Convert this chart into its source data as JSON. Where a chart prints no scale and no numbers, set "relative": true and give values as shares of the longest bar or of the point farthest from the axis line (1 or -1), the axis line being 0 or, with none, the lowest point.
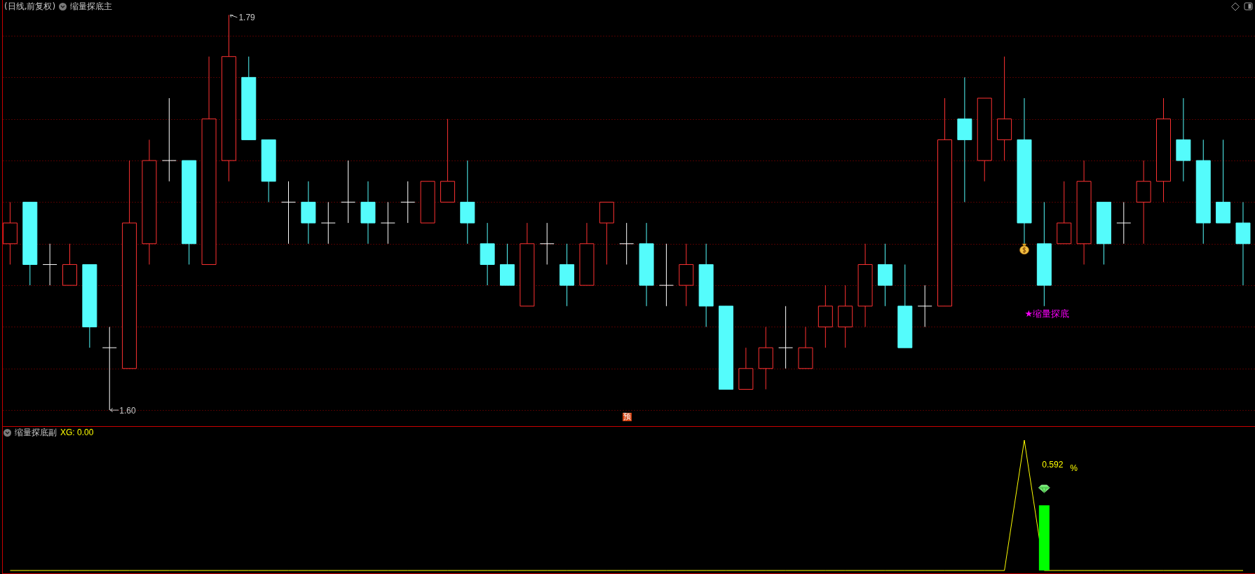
{
  "chart_data": [
    {
      "type": "candlestick",
      "title": "(日线,前复权)",
      "subtitle": "缩量探底主",
      "categories": [
        null,
        null,
        null,
        null,
        null,
        null,
        null,
        null,
        null,
        null,
        null,
        null,
        null,
        null,
        null,
        null,
        null,
        null,
        null,
        null,
        null,
        null,
        null,
        null,
        null,
        null,
        null,
        null,
        null,
        null,
        null,
        null,
        null,
        null,
        null,
        null,
        null,
        null,
        null,
        null,
        null,
        null,
        null,
        null,
        null,
        null,
        null,
        null,
        null,
        null,
        null,
        null,
        null,
        null,
        null,
        null,
        null,
        null,
        null,
        null,
        null,
        null,
        null
      ],
      "ohlc": [
        [
          1.68,
          1.7,
          1.67,
          1.69
        ],
        [
          1.7,
          1.7,
          1.66,
          1.67
        ],
        [
          1.67,
          1.68,
          1.66,
          1.67
        ],
        [
          1.66,
          1.68,
          1.66,
          1.67
        ],
        [
          1.67,
          1.67,
          1.63,
          1.64
        ],
        [
          1.63,
          1.64,
          1.6,
          1.63
        ],
        [
          1.62,
          1.72,
          1.62,
          1.69
        ],
        [
          1.68,
          1.73,
          1.67,
          1.72
        ],
        [
          1.72,
          1.75,
          1.71,
          1.72
        ],
        [
          1.72,
          1.72,
          1.67,
          1.68
        ],
        [
          1.67,
          1.77,
          1.67,
          1.74
        ],
        [
          1.72,
          1.79,
          1.71,
          1.77
        ],
        [
          1.76,
          1.77,
          1.73,
          1.73
        ],
        [
          1.73,
          1.73,
          1.7,
          1.71
        ],
        [
          1.7,
          1.71,
          1.68,
          1.7
        ],
        [
          1.7,
          1.71,
          1.68,
          1.69
        ],
        [
          1.69,
          1.7,
          1.68,
          1.69
        ],
        [
          1.7,
          1.72,
          1.69,
          1.7
        ],
        [
          1.7,
          1.71,
          1.68,
          1.69
        ],
        [
          1.69,
          1.7,
          1.68,
          1.69
        ],
        [
          1.7,
          1.71,
          1.69,
          1.7
        ],
        [
          1.69,
          1.71,
          1.69,
          1.71
        ],
        [
          1.7,
          1.74,
          1.7,
          1.71
        ],
        [
          1.7,
          1.72,
          1.68,
          1.69
        ],
        [
          1.68,
          1.69,
          1.66,
          1.67
        ],
        [
          1.67,
          1.68,
          1.66,
          1.66
        ],
        [
          1.65,
          1.69,
          1.65,
          1.68
        ],
        [
          1.68,
          1.69,
          1.67,
          1.68
        ],
        [
          1.67,
          1.68,
          1.65,
          1.66
        ],
        [
          1.66,
          1.69,
          1.66,
          1.68
        ],
        [
          1.69,
          1.7,
          1.67,
          1.7
        ],
        [
          1.68,
          1.69,
          1.67,
          1.68
        ],
        [
          1.68,
          1.69,
          1.65,
          1.66
        ],
        [
          1.66,
          1.68,
          1.65,
          1.66
        ],
        [
          1.66,
          1.68,
          1.65,
          1.67
        ],
        [
          1.67,
          1.68,
          1.64,
          1.65
        ],
        [
          1.65,
          1.65,
          1.61,
          1.61
        ],
        [
          1.61,
          1.63,
          1.61,
          1.62
        ],
        [
          1.62,
          1.64,
          1.61,
          1.63
        ],
        [
          1.63,
          1.65,
          1.62,
          1.63
        ],
        [
          1.62,
          1.64,
          1.62,
          1.63
        ],
        [
          1.64,
          1.66,
          1.63,
          1.65
        ],
        [
          1.64,
          1.66,
          1.63,
          1.65
        ],
        [
          1.65,
          1.68,
          1.64,
          1.67
        ],
        [
          1.67,
          1.68,
          1.65,
          1.66
        ],
        [
          1.65,
          1.67,
          1.63,
          1.63
        ],
        [
          1.65,
          1.66,
          1.64,
          1.65
        ],
        [
          1.65,
          1.75,
          1.65,
          1.73
        ],
        [
          1.74,
          1.76,
          1.7,
          1.73
        ],
        [
          1.72,
          1.75,
          1.71,
          1.75
        ],
        [
          1.73,
          1.77,
          1.72,
          1.74
        ],
        [
          1.73,
          1.75,
          1.68,
          1.69
        ],
        [
          1.68,
          1.7,
          1.65,
          1.66
        ],
        [
          1.68,
          1.71,
          1.68,
          1.69
        ],
        [
          1.68,
          1.72,
          1.67,
          1.71
        ],
        [
          1.7,
          1.7,
          1.67,
          1.68
        ],
        [
          1.69,
          1.7,
          1.68,
          1.69
        ],
        [
          1.7,
          1.72,
          1.68,
          1.71
        ],
        [
          1.71,
          1.75,
          1.7,
          1.74
        ],
        [
          1.73,
          1.75,
          1.71,
          1.72
        ],
        [
          1.72,
          1.73,
          1.68,
          1.69
        ],
        [
          1.7,
          1.73,
          1.69,
          1.69
        ],
        [
          1.69,
          1.7,
          1.66,
          1.68
        ]
      ],
      "colors": [
        "#ff3232",
        "#54fcfc",
        "#ffffff",
        "#ff3232",
        "#54fcfc",
        "#ffffff",
        "#ff3232",
        "#ff3232",
        "#ffffff",
        "#54fcfc",
        "#ff3232",
        "#ff3232",
        "#54fcfc",
        "#54fcfc",
        "#ffffff",
        "#54fcfc",
        "#ffffff",
        "#ffffff",
        "#54fcfc",
        "#ffffff",
        "#ffffff",
        "#ff3232",
        "#ff3232",
        "#54fcfc",
        "#54fcfc",
        "#54fcfc",
        "#ff3232",
        "#ffffff",
        "#54fcfc",
        "#ff3232",
        "#ff3232",
        "#ffffff",
        "#54fcfc",
        "#ffffff",
        "#ff3232",
        "#54fcfc",
        "#54fcfc",
        "#ff3232",
        "#ff3232",
        "#ffffff",
        "#ff3232",
        "#ff3232",
        "#ff3232",
        "#ff3232",
        "#54fcfc",
        "#54fcfc",
        "#ffffff",
        "#ff3232",
        "#54fcfc",
        "#ff3232",
        "#ff3232",
        "#54fcfc",
        "#54fcfc",
        "#ff3232",
        "#ff3232",
        "#54fcfc",
        "#ffffff",
        "#ff3232",
        "#ff3232",
        "#54fcfc",
        "#54fcfc",
        "#54fcfc",
        "#54fcfc"
      ],
      "ylim": [
        1.5923,
        1.7972
      ],
      "yticks": [
        {
          "value": 1.6,
          "label": null
        },
        {
          "value": 1.62,
          "label": null
        },
        {
          "value": 1.64,
          "label": null
        },
        {
          "value": 1.66,
          "label": null
        },
        {
          "value": 1.68,
          "label": null
        },
        {
          "value": 1.7,
          "label": null
        },
        {
          "value": 1.72,
          "label": null
        },
        {
          "value": 1.74,
          "label": null
        },
        {
          "value": 1.76,
          "label": null
        },
        {
          "value": 1.78,
          "label": null
        }
      ],
      "grid": "y",
      "annotations": [
        "1.79",
        "1.60",
        "★缩量探底",
        "预"
      ]
    },
    {
      "type": "line",
      "title": "缩量探底副",
      "relative": true,
      "categories": [
        null,
        null,
        null,
        null,
        null,
        null,
        null,
        null,
        null,
        null,
        null,
        null,
        null,
        null,
        null,
        null,
        null,
        null,
        null,
        null,
        null,
        null,
        null,
        null,
        null,
        null,
        null,
        null,
        null,
        null,
        null,
        null,
        null,
        null,
        null,
        null,
        null,
        null,
        null,
        null,
        null,
        null,
        null,
        null,
        null,
        null,
        null,
        null,
        null,
        null,
        null,
        null,
        null,
        null,
        null,
        null,
        null,
        null,
        null,
        null,
        null,
        null,
        null
      ],
      "series": [
        {
          "color": "#ffff00",
          "values": [
            0,
            0,
            0,
            0,
            0,
            0,
            0,
            0,
            0,
            0,
            0,
            0,
            0,
            0,
            0,
            0,
            0,
            0,
            0,
            0,
            0,
            0,
            0,
            0,
            0,
            0,
            0,
            0,
            0,
            0,
            0,
            0,
            0,
            0,
            0,
            0,
            0,
            0,
            0,
            0,
            0,
            0,
            0,
            0,
            0,
            0,
            0,
            0,
            0,
            0,
            0,
            1,
            0,
            0,
            0,
            0,
            0,
            0,
            0,
            0,
            0,
            0,
            0
          ]
        },
        {
          "type": "bar",
          "color": "#00ff00",
          "values": [
            null,
            null,
            null,
            null,
            null,
            null,
            null,
            null,
            null,
            null,
            null,
            null,
            null,
            null,
            null,
            null,
            null,
            null,
            null,
            null,
            null,
            null,
            null,
            null,
            null,
            null,
            null,
            null,
            null,
            null,
            null,
            null,
            null,
            null,
            null,
            null,
            null,
            null,
            null,
            null,
            null,
            null,
            null,
            null,
            null,
            null,
            null,
            null,
            null,
            null,
            null,
            null,
            0.5,
            null,
            null,
            null,
            null,
            null,
            null,
            null,
            null,
            null,
            null
          ]
        }
      ],
      "annotations": [
        "XG: 0.00",
        "0.592",
        "%"
      ]
    }
  ]
}
